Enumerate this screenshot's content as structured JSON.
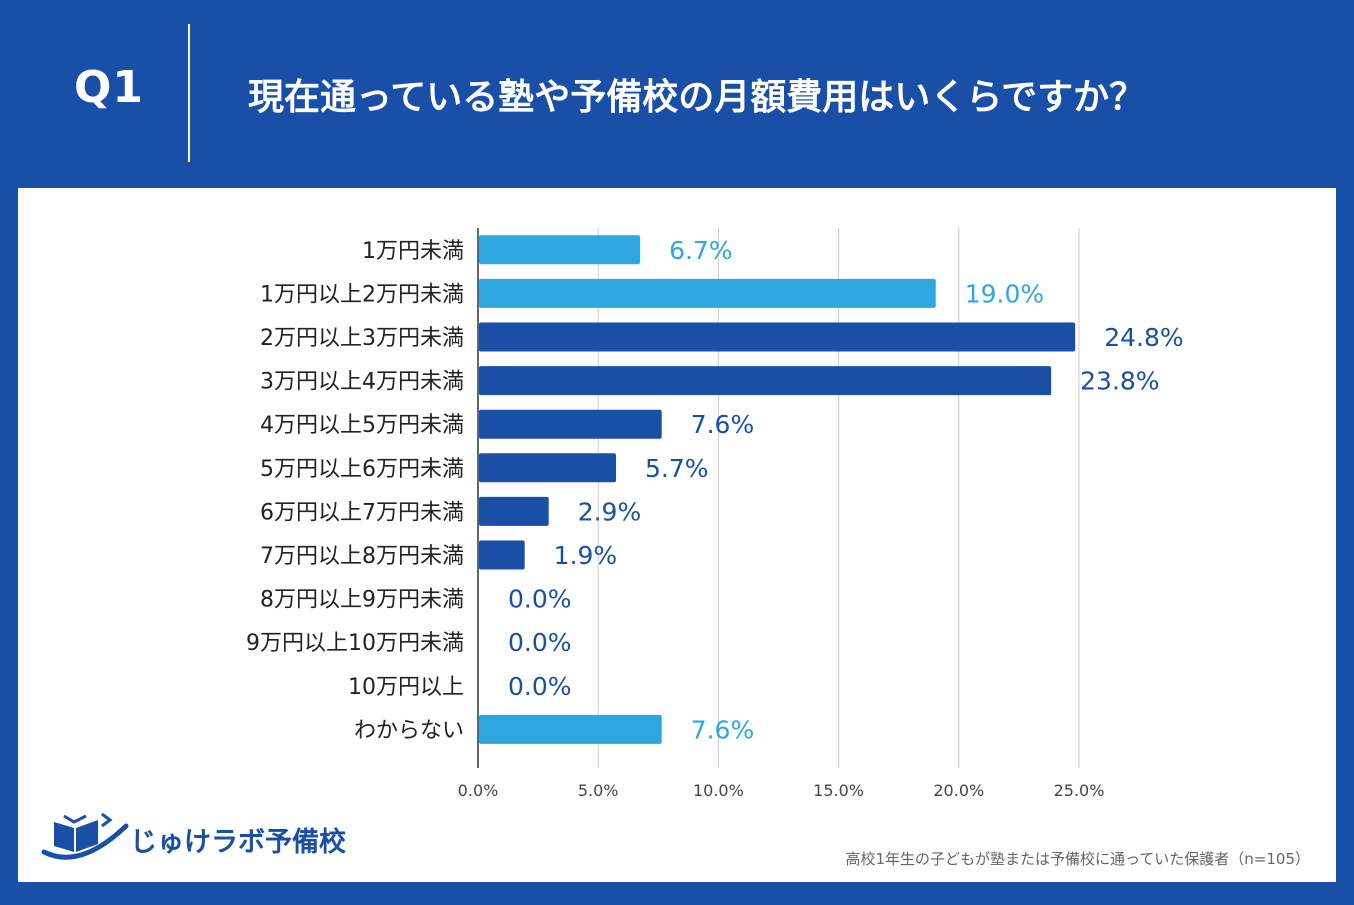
{
  "header": {
    "q_label": "Q1",
    "title": "現在通っている塾や予備校の月額費用はいくらですか？"
  },
  "colors": {
    "background": "#1a4fa8",
    "bar_dark": "#1a4fa8",
    "bar_light": "#2ea7e0",
    "grid": "#cccccc"
  },
  "chart_data": {
    "type": "bar",
    "orientation": "horizontal",
    "title": "現在通っている塾や予備校の月額費用はいくらですか？",
    "categories": [
      "1万円未満",
      "1万円以上2万円未満",
      "2万円以上3万円未満",
      "3万円以上4万円未満",
      "4万円以上5万円未満",
      "5万円以上6万円未満",
      "6万円以上7万円未満",
      "7万円以上8万円未満",
      "8万円以上9万円未満",
      "9万円以上10万円未満",
      "10万円以上",
      "わからない"
    ],
    "values": [
      6.7,
      19.0,
      24.8,
      23.8,
      7.6,
      5.7,
      2.9,
      1.9,
      0.0,
      0.0,
      0.0,
      7.6
    ],
    "value_labels": [
      "6.7%",
      "19.0%",
      "24.8%",
      "23.8%",
      "7.6%",
      "5.7%",
      "2.9%",
      "1.9%",
      "0.0%",
      "0.0%",
      "0.0%",
      "7.6%"
    ],
    "bar_colors": [
      "light",
      "light",
      "dark",
      "dark",
      "dark",
      "dark",
      "dark",
      "dark",
      "dark",
      "dark",
      "dark",
      "light"
    ],
    "xlim": [
      0,
      25
    ],
    "x_ticks": [
      0,
      5,
      10,
      15,
      20,
      25
    ],
    "x_tick_labels": [
      "0.0%",
      "5.0%",
      "10.0%",
      "15.0%",
      "20.0%",
      "25.0%"
    ],
    "xlabel": "",
    "ylabel": "",
    "grid": true
  },
  "logo": {
    "text": "じゅけラボ予備校",
    "icon": "open-book-icon"
  },
  "footnote": "高校1年生の子どもが塾または予備校に通っていた保護者（n=105）"
}
